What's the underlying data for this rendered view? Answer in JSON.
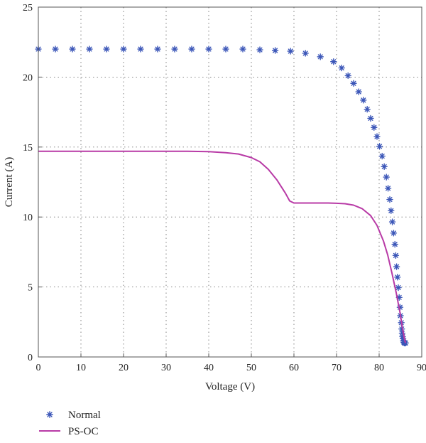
{
  "chart_data": {
    "type": "line",
    "xlabel": "Voltage (V)",
    "ylabel": "Current (A)",
    "xlim": [
      0,
      90
    ],
    "ylim": [
      0,
      25
    ],
    "xticks": [
      0,
      10,
      20,
      30,
      40,
      50,
      60,
      70,
      80,
      90
    ],
    "yticks": [
      0,
      5,
      10,
      15,
      20,
      25
    ],
    "grid": true,
    "legend_position": "bottom-left",
    "series": [
      {
        "name": "Normal",
        "style": "marker",
        "marker": "asterisk",
        "color": "#3b56b8",
        "x": [
          0,
          4,
          8,
          12,
          16,
          20,
          24,
          28,
          32,
          36,
          40,
          44,
          48,
          52,
          55.6,
          59.2,
          62.7,
          66.2,
          69.3,
          71.2,
          72.7,
          74.0,
          75.2,
          76.3,
          77.2,
          78.0,
          78.8,
          79.5,
          80.1,
          80.7,
          81.2,
          81.7,
          82.1,
          82.5,
          82.8,
          83.1,
          83.4,
          83.7,
          83.9,
          84.1,
          84.3,
          84.5,
          84.7,
          84.9,
          85.0,
          85.2,
          85.3,
          85.4,
          85.5,
          85.6,
          85.7,
          85.8,
          85.9,
          86.0,
          86.1,
          86.2
        ],
        "y": [
          22.0,
          22.0,
          22.0,
          22.0,
          22.0,
          22.0,
          22.0,
          22.0,
          22.0,
          22.0,
          22.0,
          22.0,
          22.0,
          21.95,
          21.9,
          21.85,
          21.7,
          21.45,
          21.1,
          20.65,
          20.1,
          19.55,
          18.95,
          18.35,
          17.7,
          17.05,
          16.4,
          15.75,
          15.05,
          14.35,
          13.6,
          12.85,
          12.05,
          11.25,
          10.45,
          9.65,
          8.85,
          8.05,
          7.25,
          6.45,
          5.7,
          4.95,
          4.25,
          3.55,
          2.95,
          2.45,
          2.0,
          1.7,
          1.45,
          1.3,
          1.15,
          1.05,
          1.0,
          1.0,
          1.0,
          1.0
        ]
      },
      {
        "name": "PS-OC",
        "style": "line",
        "color": "#b83aa6",
        "x": [
          0,
          10,
          20,
          30,
          35,
          40,
          44,
          47,
          50,
          52,
          54,
          56,
          58,
          59,
          60,
          62,
          65,
          68,
          70,
          72,
          74,
          76,
          78,
          79.5,
          81,
          82,
          83,
          84,
          85,
          85.5,
          86,
          86.2
        ],
        "y": [
          14.7,
          14.7,
          14.7,
          14.7,
          14.7,
          14.67,
          14.6,
          14.5,
          14.25,
          13.95,
          13.4,
          12.65,
          11.7,
          11.15,
          11.0,
          11.0,
          11.0,
          11.0,
          10.98,
          10.95,
          10.85,
          10.6,
          10.1,
          9.4,
          8.3,
          7.3,
          6.0,
          4.6,
          3.0,
          2.0,
          1.2,
          1.0
        ]
      }
    ]
  }
}
